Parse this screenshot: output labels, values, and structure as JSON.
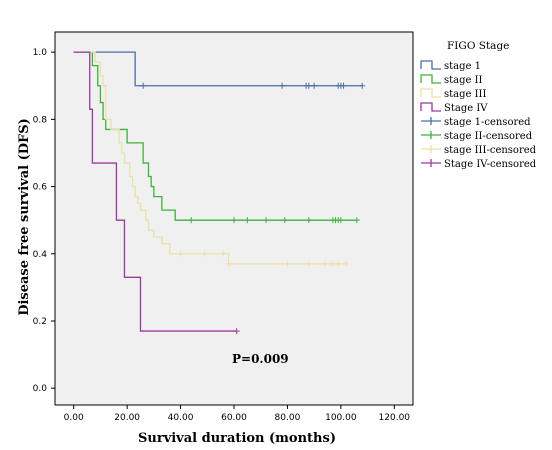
{
  "chart_data": {
    "type": "line",
    "step": true,
    "xlabel": "Survival duration (months)",
    "ylabel": "Disease free survival (DFS)",
    "xlim": [
      -7,
      127
    ],
    "ylim": [
      -0.05,
      1.06
    ],
    "xticks": [
      "0.00",
      "20.00",
      "40.00",
      "60.00",
      "80.00",
      "100.00",
      "120.00"
    ],
    "xtick_values": [
      0,
      20,
      40,
      60,
      80,
      100,
      120
    ],
    "yticks": [
      "0.0",
      "0.2",
      "0.4",
      "0.6",
      "0.8",
      "1.0"
    ],
    "ytick_values": [
      0,
      0.2,
      0.4,
      0.6,
      0.8,
      1.0
    ],
    "annotation": "P=0.009",
    "plot_background": "#f0f0f0",
    "legend": {
      "title": "FIGO Stage",
      "placement": "right",
      "entries": [
        {
          "label": "stage 1",
          "kind": "line",
          "color": "#4a6fa5"
        },
        {
          "label": "stage II",
          "kind": "line",
          "color": "#3fb13f"
        },
        {
          "label": "stage III",
          "kind": "line",
          "color": "#e8e2a8"
        },
        {
          "label": "Stage IV",
          "kind": "line",
          "color": "#9b3a9b"
        },
        {
          "label": "stage 1-censored",
          "kind": "censor",
          "color": "#4a6fa5"
        },
        {
          "label": "stage II-censored",
          "kind": "censor",
          "color": "#3fb13f"
        },
        {
          "label": "stage III-censored",
          "kind": "censor",
          "color": "#e8e2a8"
        },
        {
          "label": "Stage IV-censored",
          "kind": "censor",
          "color": "#9b3a9b"
        }
      ]
    },
    "series": [
      {
        "name": "stage 1",
        "color": "#4a6fa5",
        "x": [
          0,
          23,
          26,
          108
        ],
        "y": [
          1.0,
          0.9,
          0.9,
          0.9
        ],
        "censored_x": [
          26,
          78,
          87,
          88,
          90,
          99,
          100,
          101,
          108
        ],
        "censored_y": [
          0.9,
          0.9,
          0.9,
          0.9,
          0.9,
          0.9,
          0.9,
          0.9,
          0.9
        ]
      },
      {
        "name": "stage II",
        "color": "#3fb13f",
        "x": [
          0,
          7,
          9,
          10,
          11,
          12,
          13,
          14,
          20,
          26,
          28,
          29,
          30,
          33,
          38,
          44,
          106
        ],
        "y": [
          1.0,
          0.96,
          0.9,
          0.85,
          0.8,
          0.77,
          0.77,
          0.77,
          0.73,
          0.67,
          0.63,
          0.6,
          0.57,
          0.53,
          0.5,
          0.5,
          0.5
        ],
        "censored_x": [
          44,
          60,
          65,
          72,
          79,
          88,
          97,
          98,
          99,
          100,
          106
        ],
        "censored_y": [
          0.5,
          0.5,
          0.5,
          0.5,
          0.5,
          0.5,
          0.5,
          0.5,
          0.5,
          0.5,
          0.5
        ]
      },
      {
        "name": "stage III",
        "color": "#e8e2a8",
        "x": [
          0,
          8,
          10,
          11,
          12,
          14,
          17,
          18,
          19,
          21,
          22,
          23,
          24,
          25,
          27,
          28,
          30,
          31,
          33,
          36,
          40,
          56,
          58,
          102
        ],
        "y": [
          1.0,
          0.97,
          0.93,
          0.9,
          0.8,
          0.77,
          0.73,
          0.7,
          0.67,
          0.63,
          0.6,
          0.57,
          0.55,
          0.53,
          0.5,
          0.47,
          0.45,
          0.45,
          0.43,
          0.4,
          0.4,
          0.4,
          0.37,
          0.37
        ],
        "censored_x": [
          40,
          49,
          56,
          58,
          80,
          88,
          94,
          96,
          97,
          99,
          102
        ],
        "censored_y": [
          0.4,
          0.4,
          0.4,
          0.37,
          0.37,
          0.37,
          0.37,
          0.37,
          0.37,
          0.37,
          0.37
        ]
      },
      {
        "name": "Stage IV",
        "color": "#9b3a9b",
        "x": [
          0,
          6,
          7,
          16,
          19,
          25,
          61
        ],
        "y": [
          1.0,
          0.83,
          0.67,
          0.5,
          0.33,
          0.17,
          0.17
        ],
        "censored_x": [
          61
        ],
        "censored_y": [
          0.17
        ]
      }
    ]
  }
}
